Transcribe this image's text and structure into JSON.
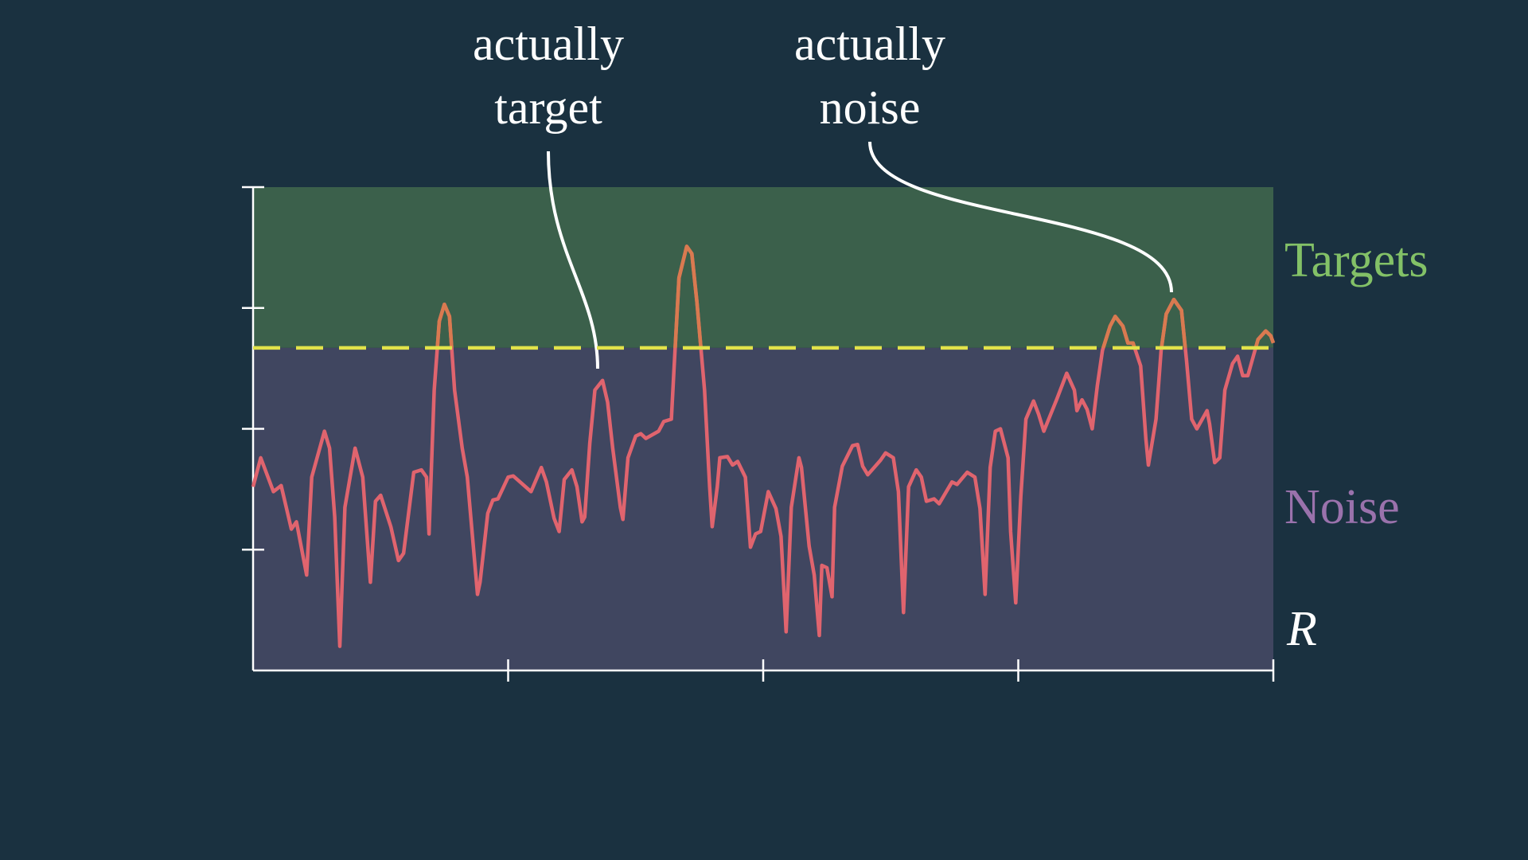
{
  "chart_data": {
    "type": "line",
    "annotations": [
      {
        "lines": [
          "actually",
          "target"
        ]
      },
      {
        "lines": [
          "actually",
          "noise"
        ]
      }
    ],
    "above_label": "Targets",
    "above_label_color": "#83c167",
    "above_fill": "#3b604b",
    "below_label": "Noise",
    "below_label_color": "#9a72ac",
    "below_fill": "#404660",
    "xlabel": "R",
    "threshold": 2.67,
    "threshold_color": "#e2e34a",
    "color": "#e0646e",
    "above_color": "#d97a50",
    "xlim": [
      0,
      4
    ],
    "xticks": [
      1,
      2,
      3,
      4
    ],
    "ylim": [
      0,
      4
    ],
    "yticks": [
      1,
      2,
      3,
      4
    ],
    "x": [
      0.0,
      0.03,
      0.08,
      0.11,
      0.15,
      0.17,
      0.21,
      0.23,
      0.28,
      0.3,
      0.32,
      0.34,
      0.36,
      0.4,
      0.43,
      0.46,
      0.48,
      0.5,
      0.54,
      0.57,
      0.59,
      0.63,
      0.66,
      0.68,
      0.69,
      0.71,
      0.73,
      0.75,
      0.77,
      0.79,
      0.82,
      0.84,
      0.88,
      0.89,
      0.92,
      0.94,
      0.96,
      1.0,
      1.02,
      1.09,
      1.13,
      1.15,
      1.18,
      1.2,
      1.22,
      1.25,
      1.27,
      1.29,
      1.3,
      1.32,
      1.34,
      1.37,
      1.39,
      1.41,
      1.44,
      1.45,
      1.47,
      1.5,
      1.52,
      1.54,
      1.59,
      1.61,
      1.64,
      1.65,
      1.67,
      1.7,
      1.72,
      1.74,
      1.77,
      1.79,
      1.8,
      1.82,
      1.83,
      1.86,
      1.88,
      1.9,
      1.93,
      1.95,
      1.97,
      1.99,
      2.02,
      2.05,
      2.07,
      2.09,
      2.11,
      2.14,
      2.15,
      2.18,
      2.2,
      2.22,
      2.23,
      2.25,
      2.27,
      2.28,
      2.31,
      2.35,
      2.37,
      2.39,
      2.41,
      2.46,
      2.48,
      2.51,
      2.53,
      2.55,
      2.57,
      2.6,
      2.62,
      2.64,
      2.67,
      2.69,
      2.74,
      2.76,
      2.8,
      2.83,
      2.85,
      2.87,
      2.89,
      2.91,
      2.93,
      2.96,
      2.97,
      2.99,
      3.01,
      3.03,
      3.06,
      3.08,
      3.1,
      3.15,
      3.19,
      3.22,
      3.23,
      3.25,
      3.27,
      3.29,
      3.31,
      3.33,
      3.36,
      3.38,
      3.41,
      3.43,
      3.45,
      3.48,
      3.5,
      3.51,
      3.54,
      3.56,
      3.58,
      3.61,
      3.64,
      3.66,
      3.68,
      3.7,
      3.74,
      3.75,
      3.77,
      3.79,
      3.81,
      3.84,
      3.86,
      3.88,
      3.9,
      3.94,
      3.97,
      3.99,
      4.0
    ],
    "values": [
      1.52,
      1.76,
      1.48,
      1.53,
      1.17,
      1.23,
      0.79,
      1.6,
      1.98,
      1.84,
      1.27,
      0.2,
      1.35,
      1.84,
      1.6,
      0.73,
      1.4,
      1.45,
      1.19,
      0.91,
      0.97,
      1.64,
      1.66,
      1.6,
      1.13,
      2.32,
      2.89,
      3.03,
      2.93,
      2.32,
      1.84,
      1.6,
      0.63,
      0.73,
      1.3,
      1.41,
      1.42,
      1.6,
      1.61,
      1.48,
      1.68,
      1.56,
      1.26,
      1.15,
      1.58,
      1.66,
      1.52,
      1.23,
      1.27,
      1.88,
      2.32,
      2.4,
      2.22,
      1.84,
      1.35,
      1.25,
      1.76,
      1.94,
      1.96,
      1.92,
      1.98,
      2.06,
      2.08,
      2.48,
      3.25,
      3.51,
      3.45,
      3.05,
      2.32,
      1.52,
      1.19,
      1.52,
      1.76,
      1.77,
      1.7,
      1.73,
      1.6,
      1.02,
      1.13,
      1.15,
      1.48,
      1.34,
      1.11,
      0.32,
      1.35,
      1.76,
      1.68,
      1.03,
      0.79,
      0.29,
      0.87,
      0.85,
      0.61,
      1.35,
      1.69,
      1.86,
      1.87,
      1.69,
      1.62,
      1.74,
      1.8,
      1.76,
      1.48,
      0.48,
      1.52,
      1.66,
      1.6,
      1.4,
      1.42,
      1.38,
      1.56,
      1.54,
      1.64,
      1.6,
      1.34,
      0.63,
      1.68,
      1.98,
      2.0,
      1.76,
      1.15,
      0.56,
      1.44,
      2.08,
      2.23,
      2.12,
      1.98,
      2.24,
      2.46,
      2.32,
      2.15,
      2.24,
      2.16,
      2.0,
      2.36,
      2.65,
      2.85,
      2.93,
      2.85,
      2.71,
      2.71,
      2.52,
      1.92,
      1.7,
      2.08,
      2.65,
      2.95,
      3.07,
      2.98,
      2.56,
      2.08,
      2.0,
      2.15,
      2.04,
      1.72,
      1.76,
      2.32,
      2.54,
      2.6,
      2.44,
      2.44,
      2.74,
      2.81,
      2.77,
      2.71
    ]
  }
}
